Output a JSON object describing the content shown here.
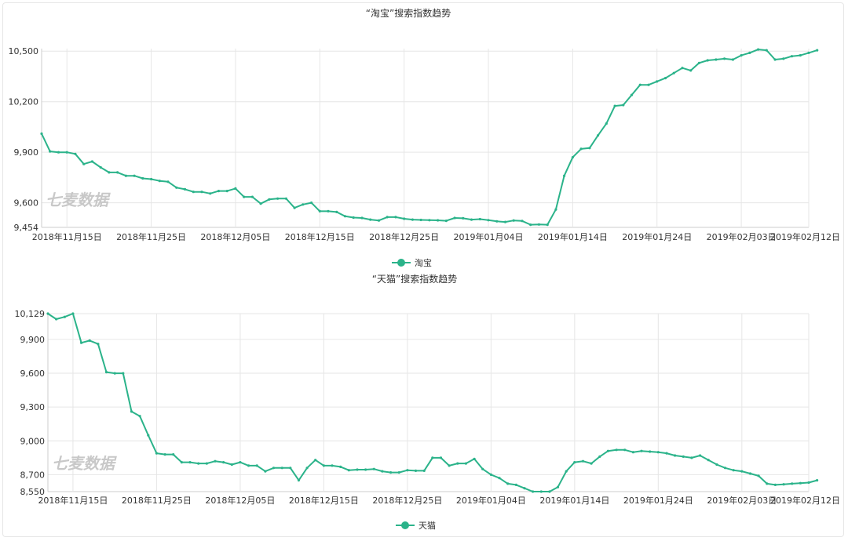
{
  "watermark": "七麦数据",
  "chart_data": [
    {
      "type": "line",
      "title": "“淘宝”搜索指数趋势",
      "color": "#2bb38a",
      "ylim": [
        9454,
        10515
      ],
      "yticks": [
        9454,
        9600,
        9900,
        10200,
        10500
      ],
      "ytick_labels": [
        "9,454",
        "9,600",
        "9,900",
        "10,200",
        "10,500"
      ],
      "xlim": [
        0,
        91
      ],
      "xticks": [
        3,
        13,
        23,
        33,
        43,
        53,
        63,
        73,
        83,
        92
      ],
      "xtick_labels": [
        "2018年11月15日",
        "2018年11月25日",
        "2018年12月05日",
        "2018年12月15日",
        "2018年12月25日",
        "2019年01月04日",
        "2019年01月14日",
        "2019年01月24日",
        "2019年02月03日",
        "2019年02月12日"
      ],
      "grid": true,
      "legend_position": "bottom-center",
      "series": [
        {
          "name": "淘宝",
          "values": [
            10010,
            9905,
            9900,
            9900,
            9890,
            9830,
            9845,
            9810,
            9780,
            9780,
            9760,
            9760,
            9745,
            9740,
            9730,
            9725,
            9690,
            9680,
            9665,
            9665,
            9655,
            9670,
            9670,
            9685,
            9635,
            9635,
            9595,
            9620,
            9625,
            9625,
            9570,
            9590,
            9600,
            9550,
            9550,
            9545,
            9520,
            9512,
            9510,
            9500,
            9495,
            9515,
            9515,
            9505,
            9500,
            9498,
            9497,
            9496,
            9493,
            9510,
            9508,
            9500,
            9503,
            9497,
            9490,
            9486,
            9495,
            9492,
            9470,
            9471,
            9470,
            9560,
            9760,
            9870,
            9920,
            9925,
            10000,
            10070,
            10175,
            10180,
            10240,
            10300,
            10300,
            10320,
            10340,
            10370,
            10400,
            10385,
            10430,
            10445,
            10450,
            10455,
            10450,
            10475,
            10490,
            10510,
            10505,
            10450,
            10455,
            10470,
            10475,
            10490,
            10505
          ]
        }
      ]
    },
    {
      "type": "line",
      "title": "“天猫”搜索指数趋势",
      "color": "#2bb38a",
      "ylim": [
        8550,
        10129
      ],
      "yticks": [
        8550,
        8700,
        9000,
        9300,
        9600,
        9900,
        10129
      ],
      "ytick_labels": [
        "8,550",
        "8,700",
        "9,000",
        "9,300",
        "9,600",
        "9,900",
        "10,129"
      ],
      "xlim": [
        0,
        91
      ],
      "xticks": [
        3,
        13,
        23,
        33,
        43,
        53,
        63,
        73,
        83,
        92
      ],
      "xtick_labels": [
        "2018年11月15日",
        "2018年11月25日",
        "2018年12月05日",
        "2018年12月15日",
        "2018年12月25日",
        "2019年01月04日",
        "2019年01月14日",
        "2019年01月24日",
        "2019年02月03日",
        "2019年02月12日"
      ],
      "grid": true,
      "legend_position": "bottom-center",
      "series": [
        {
          "name": "天猫",
          "values": [
            10129,
            10080,
            10100,
            10129,
            9870,
            9890,
            9860,
            9610,
            9600,
            9600,
            9260,
            9220,
            9050,
            8890,
            8880,
            8880,
            8810,
            8810,
            8800,
            8800,
            8820,
            8810,
            8790,
            8810,
            8780,
            8780,
            8730,
            8760,
            8760,
            8760,
            8650,
            8760,
            8830,
            8780,
            8780,
            8770,
            8740,
            8745,
            8745,
            8750,
            8730,
            8720,
            8720,
            8740,
            8735,
            8735,
            8850,
            8850,
            8780,
            8800,
            8800,
            8840,
            8750,
            8700,
            8670,
            8620,
            8610,
            8580,
            8550,
            8550,
            8550,
            8590,
            8730,
            8810,
            8820,
            8800,
            8860,
            8910,
            8920,
            8920,
            8900,
            8910,
            8905,
            8900,
            8890,
            8870,
            8860,
            8850,
            8870,
            8830,
            8790,
            8760,
            8740,
            8730,
            8710,
            8690,
            8620,
            8610,
            8615,
            8620,
            8625,
            8630,
            8650
          ]
        }
      ]
    }
  ]
}
